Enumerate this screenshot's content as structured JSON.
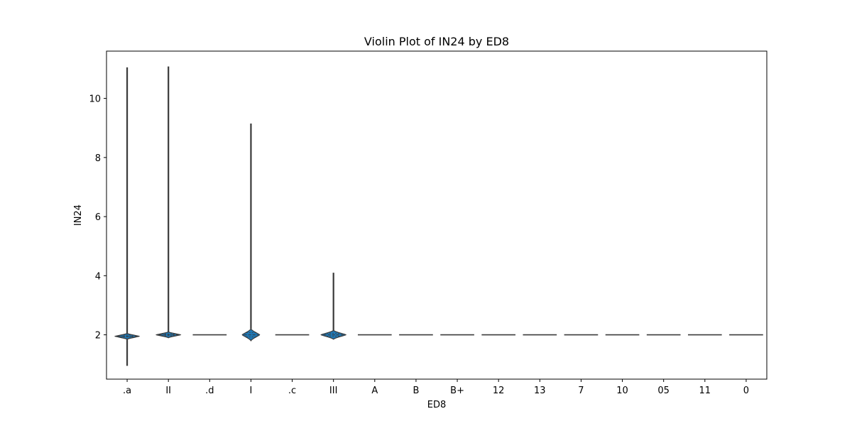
{
  "chart_data": {
    "type": "violin",
    "title": "Violin Plot of IN24 by ED8",
    "xlabel": "ED8",
    "ylabel": "IN24",
    "categories": [
      ".a",
      "II",
      ".d",
      "I",
      ".c",
      "III",
      "A",
      "B",
      "B+",
      "12",
      "13",
      "7",
      "10",
      "05",
      "11",
      "0"
    ],
    "yticks": [
      2,
      4,
      6,
      8,
      10
    ],
    "ylim": [
      0.5,
      11.6
    ],
    "grid": false,
    "violins": [
      {
        "category": ".a",
        "min": 0.95,
        "max": 11.05,
        "center": 1.95,
        "body_low": 1.85,
        "body_high": 2.05,
        "q1": 1.93,
        "q3": 1.99,
        "spread": 0.58
      },
      {
        "category": "II",
        "min": 1.95,
        "max": 11.08,
        "center": 2.0,
        "body_low": 1.9,
        "body_high": 2.1,
        "q1": 1.97,
        "q3": 2.03,
        "spread": 0.58
      },
      {
        "category": ".d",
        "min": 2.0,
        "max": 2.0,
        "center": 2.0,
        "body_low": 2.0,
        "body_high": 2.0,
        "q1": 2.0,
        "q3": 2.0,
        "spread": 0.82
      },
      {
        "category": "I",
        "min": 1.8,
        "max": 9.15,
        "center": 2.0,
        "body_low": 1.8,
        "body_high": 2.2,
        "q1": 1.93,
        "q3": 2.07,
        "spread": 0.42
      },
      {
        "category": ".c",
        "min": 2.0,
        "max": 2.0,
        "center": 2.0,
        "body_low": 2.0,
        "body_high": 2.0,
        "q1": 2.0,
        "q3": 2.0,
        "spread": 0.82
      },
      {
        "category": "III",
        "min": 1.85,
        "max": 4.1,
        "center": 2.0,
        "body_low": 1.85,
        "body_high": 2.15,
        "q1": 1.95,
        "q3": 2.05,
        "spread": 0.6
      },
      {
        "category": "A",
        "min": 2.0,
        "max": 2.0,
        "center": 2.0,
        "body_low": 2.0,
        "body_high": 2.0,
        "q1": 2.0,
        "q3": 2.0,
        "spread": 0.82
      },
      {
        "category": "B",
        "min": 2.0,
        "max": 2.0,
        "center": 2.0,
        "body_low": 2.0,
        "body_high": 2.0,
        "q1": 2.0,
        "q3": 2.0,
        "spread": 0.82
      },
      {
        "category": "B+",
        "min": 2.0,
        "max": 2.0,
        "center": 2.0,
        "body_low": 2.0,
        "body_high": 2.0,
        "q1": 2.0,
        "q3": 2.0,
        "spread": 0.82
      },
      {
        "category": "12",
        "min": 2.0,
        "max": 2.0,
        "center": 2.0,
        "body_low": 2.0,
        "body_high": 2.0,
        "q1": 2.0,
        "q3": 2.0,
        "spread": 0.82
      },
      {
        "category": "13",
        "min": 2.0,
        "max": 2.0,
        "center": 2.0,
        "body_low": 2.0,
        "body_high": 2.0,
        "q1": 2.0,
        "q3": 2.0,
        "spread": 0.82
      },
      {
        "category": "7",
        "min": 2.0,
        "max": 2.0,
        "center": 2.0,
        "body_low": 2.0,
        "body_high": 2.0,
        "q1": 2.0,
        "q3": 2.0,
        "spread": 0.82
      },
      {
        "category": "10",
        "min": 2.0,
        "max": 2.0,
        "center": 2.0,
        "body_low": 2.0,
        "body_high": 2.0,
        "q1": 2.0,
        "q3": 2.0,
        "spread": 0.82
      },
      {
        "category": "05",
        "min": 2.0,
        "max": 2.0,
        "center": 2.0,
        "body_low": 2.0,
        "body_high": 2.0,
        "q1": 2.0,
        "q3": 2.0,
        "spread": 0.82
      },
      {
        "category": "11",
        "min": 2.0,
        "max": 2.0,
        "center": 2.0,
        "body_low": 2.0,
        "body_high": 2.0,
        "q1": 2.0,
        "q3": 2.0,
        "spread": 0.82
      },
      {
        "category": "0",
        "min": 2.0,
        "max": 2.0,
        "center": 2.0,
        "body_low": 2.0,
        "body_high": 2.0,
        "q1": 2.0,
        "q3": 2.0,
        "spread": 0.82
      }
    ],
    "colors": {
      "fill": "#1f77b4",
      "line": "#3a3a3a",
      "frame": "#000000"
    }
  }
}
